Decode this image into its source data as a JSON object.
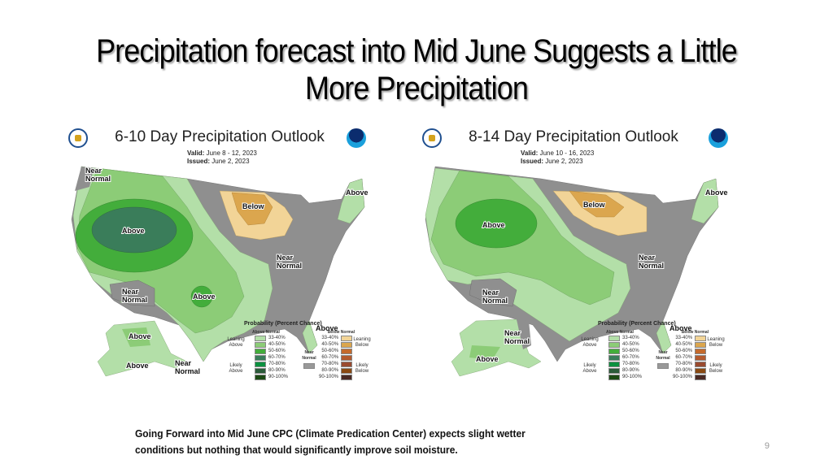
{
  "slide": {
    "title": "Precipitation forecast into Mid June Suggests a Little More Precipitation",
    "caption_line1": "Going Forward into Mid June CPC (Climate Predication Center) expects slight wetter",
    "caption_line2": "conditions but nothing that would significantly improve soil moisture.",
    "page_number": "9"
  },
  "maps": [
    {
      "title": "6-10 Day Precipitation Outlook",
      "valid_label": "Valid:",
      "valid_value": "June 8 - 12, 2023",
      "issued_label": "Issued:",
      "issued_value": "June 2, 2023",
      "region_labels": [
        "Near Normal",
        "Below",
        "Above",
        "Near Normal",
        "Near Normal",
        "Above",
        "Above",
        "Above",
        "Above",
        "Near Normal",
        "Above"
      ]
    },
    {
      "title": "8-14 Day Precipitation Outlook",
      "valid_label": "Valid:",
      "valid_value": "June 10 - 16, 2023",
      "issued_label": "Issued:",
      "issued_value": "June 2, 2023",
      "region_labels": [
        "Below",
        "Above",
        "Above",
        "Near Normal",
        "Near Normal",
        "Above",
        "Near Normal",
        "Above"
      ]
    }
  ],
  "legend": {
    "title": "Probability (Percent Chance)",
    "above_header": "Above Normal",
    "below_header": "Below Normal",
    "near_label": "Near Normal",
    "leaning_above": "Leaning Above",
    "likely_above": "Likely Above",
    "leaning_below": "Leaning Below",
    "likely_below": "Likely Below",
    "ranges": [
      "33-40%",
      "40-50%",
      "50-60%",
      "60-70%",
      "70-80%",
      "80-90%",
      "90-100%"
    ],
    "above_colors": [
      "#b3dfa8",
      "#8ccc77",
      "#43ad3b",
      "#3a7d5a",
      "#0c9140",
      "#2b5b3a",
      "#1b4a14"
    ],
    "below_colors": [
      "#f2d497",
      "#dba64e",
      "#c46a2c",
      "#b35a2e",
      "#9a4b2f",
      "#8a4a12",
      "#4a2a24"
    ],
    "near_color": "#999999"
  },
  "colors": {
    "near_normal": "#8f8f8f",
    "lean_above": "#b3dfa8",
    "above_40": "#8ccc77",
    "above_50": "#43ad3b",
    "above_60": "#3a7d5a",
    "lean_below": "#f2d497",
    "below_40": "#dba64e"
  }
}
